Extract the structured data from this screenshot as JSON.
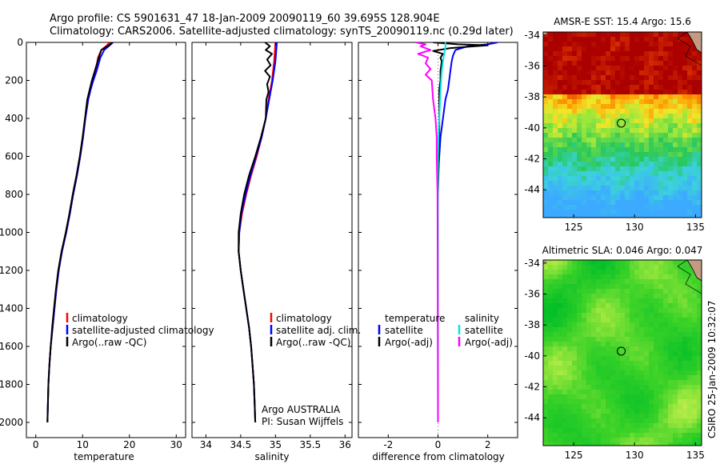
{
  "title": {
    "line1": "Argo profile: CS 5901631_47 18-Jan-2009 20090119_60 39.695S 128.904E",
    "line2": "Climatology: CARS2006. Satellite-adjusted climatology: synTS_20090119.nc (0.29d later)"
  },
  "side_label": "CSIRO 25-Jan-2009 10:32:07",
  "colors": {
    "climatology": "#ff0000",
    "satellite": "#0000ff",
    "argo": "#000000",
    "sal_satellite": "#00e5e5",
    "sal_argo": "#ff00ff",
    "land": "#c49a82"
  },
  "chart_data": [
    {
      "type": "line",
      "panel": "temperature",
      "xlabel": "temperature",
      "xlim": [
        -2,
        32
      ],
      "xticks": [
        "0",
        "10",
        "20",
        "30"
      ],
      "ylim": [
        0,
        2080
      ],
      "yticks": [
        "0",
        "200",
        "400",
        "600",
        "800",
        "1000",
        "1200",
        "1400",
        "1600",
        "1800",
        "2000"
      ],
      "legend": [
        "climatology",
        "satellite-adjusted climatology",
        "Argo(..raw -QC)"
      ],
      "series": [
        {
          "name": "climatology",
          "color": "#ff0000",
          "points": [
            [
              15.8,
              0
            ],
            [
              15.2,
              15
            ],
            [
              14,
              40
            ],
            [
              13.3,
              80
            ],
            [
              12.8,
              150
            ],
            [
              12.2,
              200
            ],
            [
              11.7,
              250
            ],
            [
              11.2,
              300
            ],
            [
              10.6,
              400
            ],
            [
              10.1,
              500
            ],
            [
              9.5,
              600
            ],
            [
              8.8,
              700
            ],
            [
              8,
              800
            ],
            [
              7.3,
              900
            ],
            [
              6.5,
              1000
            ],
            [
              5.6,
              1100
            ],
            [
              4.9,
              1200
            ],
            [
              4.4,
              1300
            ],
            [
              4,
              1400
            ],
            [
              3.6,
              1500
            ],
            [
              3.2,
              1600
            ],
            [
              2.9,
              1700
            ],
            [
              2.7,
              1800
            ],
            [
              2.6,
              1900
            ],
            [
              2.5,
              2000
            ]
          ]
        },
        {
          "name": "satellite-adjusted climatology",
          "color": "#0000ff",
          "points": [
            [
              16.5,
              0
            ],
            [
              15.8,
              15
            ],
            [
              14.6,
              40
            ],
            [
              13.8,
              80
            ],
            [
              13,
              150
            ],
            [
              12.3,
              200
            ],
            [
              11.7,
              250
            ],
            [
              11.2,
              300
            ],
            [
              10.6,
              400
            ],
            [
              10.1,
              500
            ],
            [
              9.5,
              600
            ],
            [
              8.8,
              700
            ],
            [
              8,
              800
            ],
            [
              7.3,
              900
            ],
            [
              6.5,
              1000
            ],
            [
              5.6,
              1100
            ],
            [
              4.9,
              1200
            ],
            [
              4.4,
              1300
            ],
            [
              4,
              1400
            ],
            [
              3.6,
              1500
            ],
            [
              3.2,
              1600
            ],
            [
              2.9,
              1700
            ],
            [
              2.7,
              1800
            ],
            [
              2.6,
              1900
            ],
            [
              2.5,
              2000
            ]
          ]
        },
        {
          "name": "Argo(..raw -QC)",
          "color": "#000000",
          "points": [
            [
              16.2,
              0
            ],
            [
              15.9,
              10
            ],
            [
              15,
              25
            ],
            [
              14,
              40
            ],
            [
              13.6,
              70
            ],
            [
              13.2,
              100
            ],
            [
              12.6,
              150
            ],
            [
              12,
              200
            ],
            [
              11.5,
              250
            ],
            [
              11,
              300
            ],
            [
              10.5,
              400
            ],
            [
              10,
              500
            ],
            [
              9.4,
              600
            ],
            [
              8.7,
              700
            ],
            [
              7.9,
              800
            ],
            [
              7.2,
              900
            ],
            [
              6.4,
              1000
            ],
            [
              5.5,
              1100
            ],
            [
              4.8,
              1200
            ],
            [
              4.3,
              1300
            ],
            [
              3.9,
              1400
            ],
            [
              3.5,
              1500
            ],
            [
              3.2,
              1600
            ],
            [
              2.9,
              1700
            ],
            [
              2.7,
              1800
            ],
            [
              2.6,
              1900
            ],
            [
              2.5,
              2000
            ]
          ]
        }
      ]
    },
    {
      "type": "line",
      "panel": "salinity",
      "xlabel": "salinity",
      "xlim": [
        33.8,
        36.1
      ],
      "xticks": [
        "34",
        "34.5",
        "35",
        "35.5",
        "36"
      ],
      "ylim": [
        0,
        2080
      ],
      "legend": [
        "climatology",
        "satellite adj. clim.",
        "Argo(..raw -QC)"
      ],
      "annotation": [
        "Argo AUSTRALIA",
        "PI: Susan Wijffels"
      ],
      "series": [
        {
          "name": "climatology",
          "color": "#ff0000",
          "points": [
            [
              35.0,
              0
            ],
            [
              34.98,
              100
            ],
            [
              34.95,
              200
            ],
            [
              34.9,
              300
            ],
            [
              34.86,
              400
            ],
            [
              34.8,
              500
            ],
            [
              34.73,
              600
            ],
            [
              34.65,
              700
            ],
            [
              34.58,
              800
            ],
            [
              34.52,
              900
            ],
            [
              34.48,
              1000
            ],
            [
              34.47,
              1100
            ],
            [
              34.5,
              1200
            ],
            [
              34.54,
              1300
            ],
            [
              34.58,
              1400
            ],
            [
              34.62,
              1500
            ],
            [
              34.65,
              1600
            ],
            [
              34.67,
              1700
            ],
            [
              34.69,
              1800
            ],
            [
              34.7,
              1900
            ],
            [
              34.71,
              2000
            ]
          ]
        },
        {
          "name": "satellite adj. clim.",
          "color": "#0000ff",
          "points": [
            [
              35.02,
              0
            ],
            [
              35.0,
              100
            ],
            [
              34.96,
              200
            ],
            [
              34.91,
              300
            ],
            [
              34.86,
              400
            ],
            [
              34.8,
              500
            ],
            [
              34.72,
              600
            ],
            [
              34.64,
              700
            ],
            [
              34.57,
              800
            ],
            [
              34.51,
              900
            ],
            [
              34.48,
              1000
            ],
            [
              34.47,
              1100
            ],
            [
              34.5,
              1200
            ],
            [
              34.54,
              1300
            ],
            [
              34.58,
              1400
            ],
            [
              34.62,
              1500
            ],
            [
              34.65,
              1600
            ],
            [
              34.67,
              1700
            ],
            [
              34.69,
              1800
            ],
            [
              34.7,
              1900
            ],
            [
              34.71,
              2000
            ]
          ]
        },
        {
          "name": "Argo(..raw -QC)",
          "color": "#000000",
          "points": [
            [
              34.85,
              0
            ],
            [
              34.92,
              20
            ],
            [
              34.86,
              40
            ],
            [
              34.95,
              60
            ],
            [
              34.88,
              90
            ],
            [
              34.93,
              120
            ],
            [
              34.85,
              150
            ],
            [
              34.92,
              180
            ],
            [
              34.88,
              220
            ],
            [
              34.9,
              260
            ],
            [
              34.87,
              300
            ],
            [
              34.86,
              400
            ],
            [
              34.79,
              500
            ],
            [
              34.71,
              600
            ],
            [
              34.62,
              700
            ],
            [
              34.55,
              800
            ],
            [
              34.5,
              900
            ],
            [
              34.47,
              1000
            ],
            [
              34.47,
              1100
            ],
            [
              34.5,
              1200
            ],
            [
              34.54,
              1300
            ],
            [
              34.58,
              1400
            ],
            [
              34.62,
              1500
            ],
            [
              34.65,
              1600
            ],
            [
              34.67,
              1700
            ],
            [
              34.69,
              1800
            ],
            [
              34.7,
              1900
            ],
            [
              34.71,
              2000
            ]
          ]
        }
      ]
    },
    {
      "type": "line",
      "panel": "difference",
      "xlabel": "difference from climatology",
      "xlim": [
        -3.2,
        3.2
      ],
      "xticks": [
        "-2",
        "0",
        "2"
      ],
      "ylim": [
        0,
        2080
      ],
      "legend_titles": [
        "temperature",
        "salinity"
      ],
      "legend": [
        "satellite",
        "Argo(-adj)",
        "satellite",
        "Argo(-adj)"
      ],
      "series": [
        {
          "name": "temperature satellite",
          "color": "#0000ff",
          "points": [
            [
              2.4,
              0
            ],
            [
              2.0,
              10
            ],
            [
              1.2,
              20
            ],
            [
              0.7,
              40
            ],
            [
              0.6,
              70
            ],
            [
              0.55,
              100
            ],
            [
              0.5,
              150
            ],
            [
              0.45,
              200
            ],
            [
              0.4,
              250
            ],
            [
              0.3,
              300
            ],
            [
              0.2,
              400
            ],
            [
              0.1,
              500
            ],
            [
              0.05,
              600
            ],
            [
              0,
              700
            ],
            [
              0,
              800
            ],
            [
              0,
              2000
            ]
          ]
        },
        {
          "name": "temperature Argo(-adj)",
          "color": "#000000",
          "points": [
            [
              -0.2,
              0
            ],
            [
              0.8,
              10
            ],
            [
              2.0,
              15
            ],
            [
              1.5,
              20
            ],
            [
              0.5,
              30
            ],
            [
              -0.2,
              45
            ],
            [
              0.2,
              60
            ],
            [
              0.1,
              80
            ],
            [
              0.15,
              100
            ],
            [
              0.1,
              150
            ],
            [
              0.1,
              200
            ],
            [
              0.05,
              250
            ],
            [
              0.05,
              300
            ],
            [
              0.05,
              500
            ],
            [
              0.02,
              700
            ],
            [
              0,
              800
            ],
            [
              0,
              900
            ],
            [
              0,
              1100
            ],
            [
              0,
              1200
            ],
            [
              0,
              1500
            ],
            [
              0,
              2000
            ]
          ]
        },
        {
          "name": "salinity satellite",
          "color": "#00e5e5",
          "points": [
            [
              0.3,
              0
            ],
            [
              0.3,
              30
            ],
            [
              0.22,
              80
            ],
            [
              0.15,
              150
            ],
            [
              0.1,
              250
            ],
            [
              0.05,
              400
            ],
            [
              0.02,
              500
            ],
            [
              0,
              600
            ],
            [
              0,
              2000
            ]
          ]
        },
        {
          "name": "salinity Argo(-adj)",
          "color": "#ff00ff",
          "points": [
            [
              -0.9,
              0
            ],
            [
              -0.5,
              10
            ],
            [
              -0.7,
              20
            ],
            [
              -0.3,
              40
            ],
            [
              -0.8,
              60
            ],
            [
              -0.4,
              80
            ],
            [
              -0.5,
              110
            ],
            [
              -0.3,
              140
            ],
            [
              -0.5,
              170
            ],
            [
              -0.25,
              200
            ],
            [
              -0.2,
              300
            ],
            [
              -0.1,
              400
            ],
            [
              -0.05,
              500
            ],
            [
              -0.05,
              600
            ],
            [
              -0.02,
              800
            ],
            [
              0,
              2000
            ]
          ]
        }
      ]
    },
    {
      "type": "heatmap",
      "title": "AMSR-E SST: 15.4 Argo: 15.6",
      "xlim": [
        122.5,
        135.5
      ],
      "ylim": [
        -45.8,
        -33.8
      ],
      "xticks": [
        "125",
        "130",
        "135"
      ],
      "yticks": [
        "-34",
        "-36",
        "-38",
        "-40",
        "-42",
        "-44"
      ],
      "marker": [
        128.904,
        -39.695
      ]
    },
    {
      "type": "heatmap",
      "title": "Altimetric SLA: 0.046 Argo: 0.047",
      "xlim": [
        122.5,
        135.5
      ],
      "ylim": [
        -45.8,
        -33.8
      ],
      "xticks": [
        "125",
        "130",
        "135"
      ],
      "yticks": [
        "-34",
        "-36",
        "-38",
        "-40",
        "-42",
        "-44"
      ],
      "marker": [
        128.904,
        -39.695
      ]
    }
  ]
}
